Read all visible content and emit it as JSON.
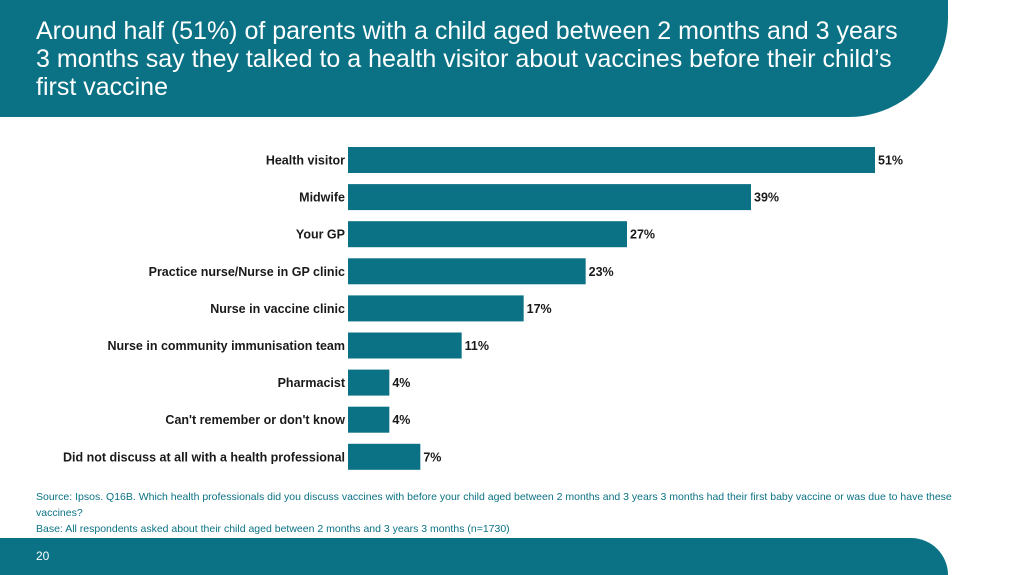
{
  "header": {
    "title": "Around half (51%) of parents with a child aged between 2 months and 3 years 3 months say they talked to a health visitor about vaccines before their child’s first vaccine"
  },
  "chart_data": {
    "type": "bar",
    "orientation": "horizontal",
    "categories": [
      "Health visitor",
      "Midwife",
      "Your GP",
      "Practice nurse/Nurse in GP clinic",
      "Nurse in vaccine clinic",
      "Nurse in community immunisation team",
      "Pharmacist",
      "Can't remember or don't know",
      "Did not discuss at all with a health professional"
    ],
    "values": [
      51,
      39,
      27,
      23,
      17,
      11,
      4,
      4,
      7
    ],
    "value_labels": [
      "51%",
      "39%",
      "27%",
      "23%",
      "17%",
      "11%",
      "4%",
      "4%",
      "7%"
    ],
    "xlim": [
      0,
      51
    ],
    "grid": false,
    "bar_color": "#0b7285"
  },
  "source": {
    "line1": "Source: Ipsos. Q16B. Which health professionals did you discuss vaccines with before your child aged between 2 months and 3 years 3 months had their first baby vaccine or was due to have these vaccines?",
    "line2": "Base: All respondents asked about their child aged between 2 months and 3 years 3 months (n=1730)"
  },
  "footer": {
    "page_number": "20"
  }
}
